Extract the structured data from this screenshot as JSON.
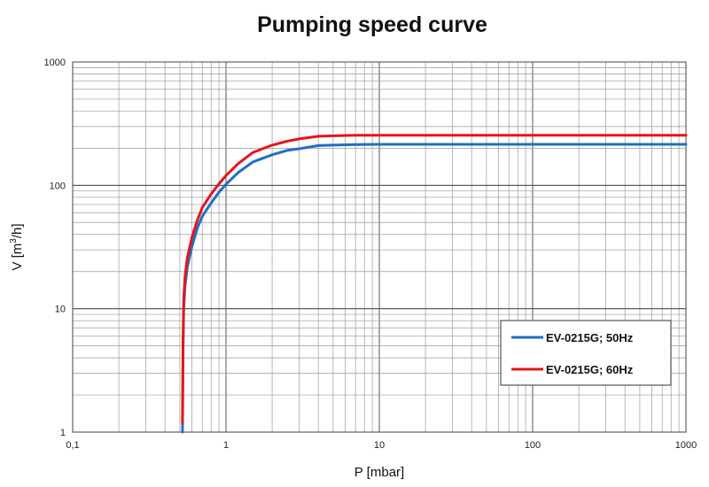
{
  "chart_data": {
    "type": "line",
    "title": "Pumping speed curve",
    "xlabel": "P [mbar]",
    "ylabel_main": "V [m",
    "ylabel_sup": "3",
    "ylabel_tail": "/h]",
    "xscale": "log",
    "yscale": "log",
    "xlim": [
      0.1,
      1000
    ],
    "ylim": [
      1,
      1000
    ],
    "xticks": [
      {
        "value": 0.1,
        "label": "0,1"
      },
      {
        "value": 1,
        "label": "1"
      },
      {
        "value": 10,
        "label": "10"
      },
      {
        "value": 100,
        "label": "100"
      },
      {
        "value": 1000,
        "label": "1000"
      }
    ],
    "yticks": [
      {
        "value": 1,
        "label": "1"
      },
      {
        "value": 10,
        "label": "10"
      },
      {
        "value": 100,
        "label": "100"
      },
      {
        "value": 1000,
        "label": "1000"
      }
    ],
    "grid": true,
    "legend_position": "bottom-right",
    "series": [
      {
        "name": "EV-0215G; 50Hz",
        "color": "#1f6fc5",
        "x": [
          0.52,
          0.525,
          0.53,
          0.54,
          0.56,
          0.6,
          0.65,
          0.7,
          0.8,
          0.9,
          1.0,
          1.2,
          1.5,
          2.0,
          2.5,
          3.0,
          4.0,
          5.0,
          7.0,
          10,
          100,
          1000
        ],
        "y": [
          1,
          5,
          10,
          15,
          22,
          32,
          45,
          56,
          72,
          88,
          102,
          127,
          155,
          177,
          192,
          198,
          210,
          212,
          214,
          215,
          215,
          215
        ]
      },
      {
        "name": "EV-0215G; 60Hz",
        "color": "#e8141b",
        "x": [
          0.52,
          0.525,
          0.53,
          0.54,
          0.56,
          0.6,
          0.65,
          0.7,
          0.8,
          0.9,
          1.0,
          1.2,
          1.5,
          2.0,
          2.5,
          3.0,
          4.0,
          5.0,
          7.0,
          10,
          100,
          1000
        ],
        "y": [
          1.2,
          6,
          12,
          18,
          26,
          38,
          52,
          66,
          85,
          103,
          120,
          150,
          185,
          212,
          228,
          238,
          250,
          252,
          255,
          255,
          255,
          255
        ]
      }
    ]
  }
}
